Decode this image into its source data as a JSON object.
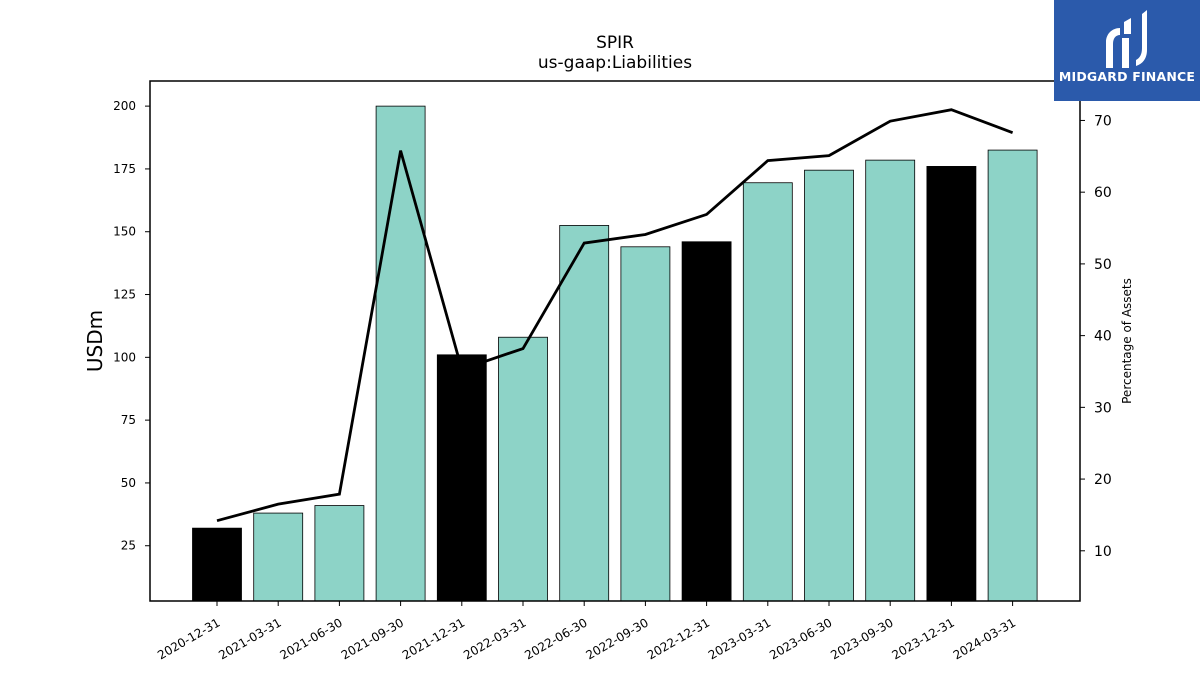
{
  "brand": {
    "name": "MIDGARD FINANCE",
    "color": "#2b5aab"
  },
  "chart_data": {
    "type": "bar",
    "title": "SPIR",
    "subtitle": "us-gaap:Liabilities",
    "ylabel": "USDm",
    "y2label": "Percentage of Assets",
    "categories": [
      "2020-12-31",
      "2021-03-31",
      "2021-06-30",
      "2021-09-30",
      "2021-12-31",
      "2022-03-31",
      "2022-06-30",
      "2022-09-30",
      "2022-12-31",
      "2023-03-31",
      "2023-06-30",
      "2023-09-30",
      "2023-12-31",
      "2024-03-31"
    ],
    "series": [
      {
        "kind": "bar",
        "axis": "left",
        "values": [
          32,
          38,
          41,
          200,
          101,
          108,
          152.5,
          144,
          146,
          169.5,
          174.5,
          178.5,
          176,
          182.5
        ],
        "colors": [
          "#000000",
          "#8dd3c7",
          "#8dd3c7",
          "#8dd3c7",
          "#000000",
          "#8dd3c7",
          "#8dd3c7",
          "#8dd3c7",
          "#000000",
          "#8dd3c7",
          "#8dd3c7",
          "#8dd3c7",
          "#000000",
          "#8dd3c7"
        ]
      },
      {
        "kind": "line",
        "axis": "right",
        "color": "#000000",
        "values": [
          14.2,
          16.5,
          17.9,
          65.8,
          35.3,
          38.2,
          52.9,
          54.1,
          56.9,
          64.4,
          65.1,
          69.9,
          71.5,
          68.3
        ]
      }
    ],
    "ylim": [
      3,
      210
    ],
    "yticks": [
      25,
      50,
      75,
      100,
      125,
      150,
      175,
      200
    ],
    "y2lim": [
      3,
      75.5
    ],
    "y2ticks": [
      10,
      20,
      30,
      40,
      50,
      60,
      70
    ],
    "grid": false,
    "legend": "none"
  }
}
